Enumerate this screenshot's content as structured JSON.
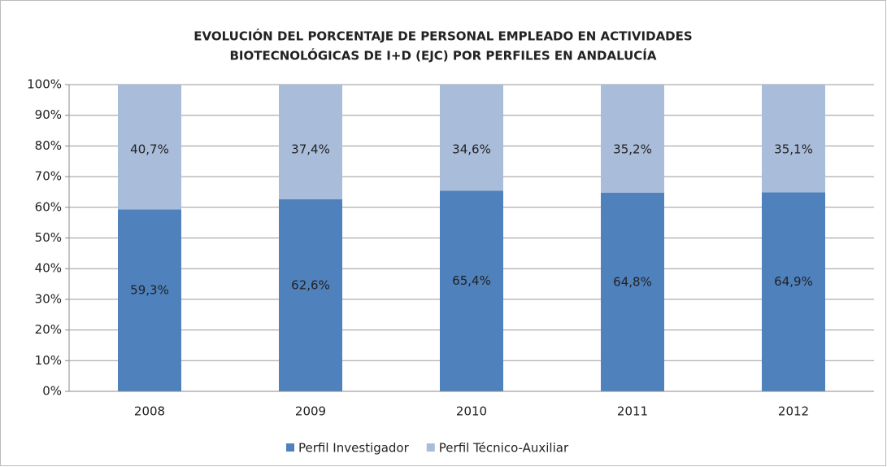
{
  "chart_data": {
    "type": "stacked_bar",
    "title": [
      "EVOLUCIÓN  DEL PORCENTAJE DE PERSONAL EMPLEADO EN  ACTIVIDADES",
      "BIOTECNOLÓGICAS DE  I+D (EJC) POR PERFILES EN ANDALUCÍA"
    ],
    "categories": [
      "2008",
      "2009",
      "2010",
      "2011",
      "2012"
    ],
    "series": [
      {
        "name": "Perfil Investigador",
        "color": "#4f81bd",
        "values": [
          59.3,
          62.6,
          65.4,
          64.8,
          64.9
        ],
        "value_labels": [
          "59,3%",
          "62,6%",
          "65,4%",
          "64,8%",
          "64,9%"
        ]
      },
      {
        "name": "Perfil Técnico-Auxiliar",
        "color": "#a9bcda",
        "values": [
          40.7,
          37.4,
          34.6,
          35.2,
          35.1
        ],
        "value_labels": [
          "40,7%",
          "37,4%",
          "34,6%",
          "35,2%",
          "35,1%"
        ]
      }
    ],
    "ylim": [
      0,
      100
    ],
    "yticks": [
      {
        "value": 0,
        "label": "0%"
      },
      {
        "value": 10,
        "label": "10%"
      },
      {
        "value": 20,
        "label": "20%"
      },
      {
        "value": 30,
        "label": "30%"
      },
      {
        "value": 40,
        "label": "40%"
      },
      {
        "value": 50,
        "label": "50%"
      },
      {
        "value": 60,
        "label": "60%"
      },
      {
        "value": 70,
        "label": "70%"
      },
      {
        "value": 80,
        "label": "80%"
      },
      {
        "value": 90,
        "label": "90%"
      },
      {
        "value": 100,
        "label": "100%"
      }
    ],
    "grid": true,
    "legend": "bottom"
  }
}
